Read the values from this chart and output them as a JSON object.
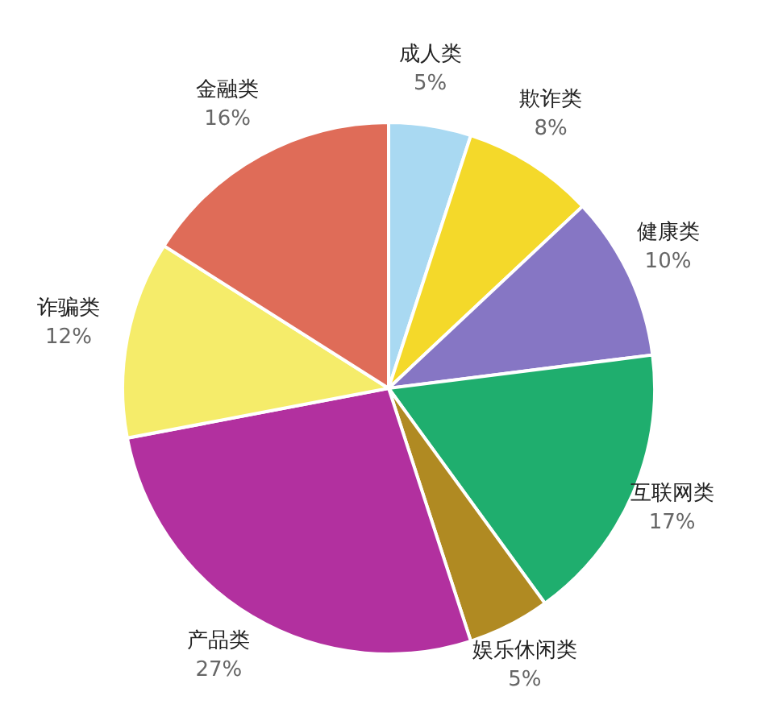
{
  "chart_data": {
    "type": "pie",
    "categories": [
      "成人类",
      "欺诈类",
      "健康类",
      "互联网类",
      "娱乐休闲类",
      "产品类",
      "诈骗类",
      "金融类"
    ],
    "values": [
      5,
      8,
      10,
      17,
      5,
      27,
      12,
      16
    ],
    "value_labels": [
      "5%",
      "8%",
      "10%",
      "17%",
      "5%",
      "27%",
      "12%",
      "16%"
    ],
    "colors": [
      "#a9d9f2",
      "#f4d92a",
      "#8676c4",
      "#1fae6e",
      "#b08a22",
      "#b2309f",
      "#f5ec6a",
      "#df6c58"
    ],
    "legend": false
  }
}
